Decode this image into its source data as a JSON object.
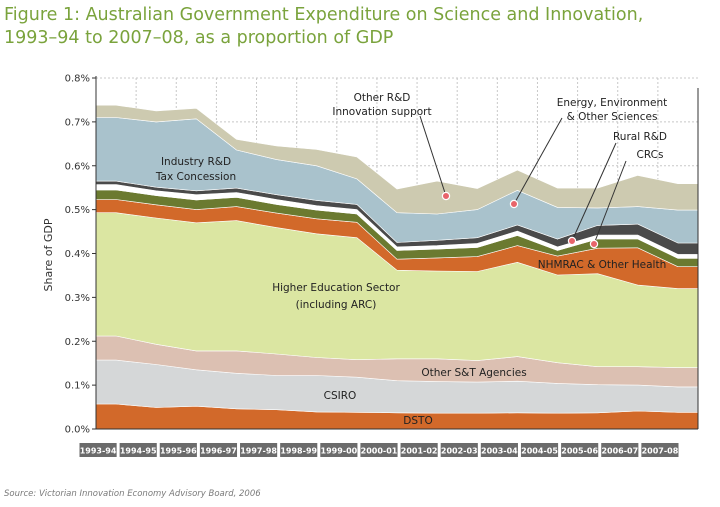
{
  "title_line1": "Figure 1: Australian Government Expenditure on Science and Innovation,",
  "title_line2": "1993–94 to 2007–08, as a proportion of GDP",
  "source": "Source: Victorian Innovation Economy Advisory Board, 2006",
  "chart_data": {
    "type": "area",
    "stacked": true,
    "ylabel": "Share of GDP",
    "ylim": [
      0,
      0.8
    ],
    "yticks": [
      "0.0%",
      "0.1%",
      "0.2%",
      "0.3%",
      "0.4%",
      "0.5%",
      "0.6%",
      "0.7%",
      "0.8%"
    ],
    "categories": [
      "1993-94",
      "1994-95",
      "1995-96",
      "1996-97",
      "1997-98",
      "1998-99",
      "1999-00",
      "2000-01",
      "2001-02",
      "2002-03",
      "2003-04",
      "2004-05",
      "2005-06",
      "2006-07",
      "2007-08"
    ],
    "series": [
      {
        "name": "DSTO",
        "color": "#d2692a",
        "values": [
          0.057,
          0.049,
          0.052,
          0.046,
          0.044,
          0.039,
          0.038,
          0.037,
          0.036,
          0.036,
          0.037,
          0.036,
          0.037,
          0.041,
          0.038
        ]
      },
      {
        "name": "CSIRO",
        "color": "#d5d7d8",
        "values": [
          0.1,
          0.098,
          0.083,
          0.081,
          0.078,
          0.083,
          0.08,
          0.073,
          0.072,
          0.071,
          0.072,
          0.068,
          0.064,
          0.059,
          0.058
        ]
      },
      {
        "name": "Other S&T Agencies",
        "color": "#dcc0b2",
        "values": [
          0.055,
          0.046,
          0.043,
          0.051,
          0.049,
          0.041,
          0.04,
          0.05,
          0.052,
          0.049,
          0.056,
          0.047,
          0.041,
          0.042,
          0.044
        ]
      },
      {
        "name": "Higher Education Sector (including ARC)",
        "color": "#dbe6a2",
        "values": [
          0.281,
          0.288,
          0.292,
          0.297,
          0.288,
          0.282,
          0.278,
          0.202,
          0.2,
          0.203,
          0.215,
          0.2,
          0.212,
          0.186,
          0.18
        ]
      },
      {
        "name": "NHMRAC & Other Health",
        "color": "#d2692a",
        "values": [
          0.03,
          0.03,
          0.03,
          0.032,
          0.033,
          0.034,
          0.035,
          0.025,
          0.03,
          0.034,
          0.038,
          0.043,
          0.058,
          0.085,
          0.05
        ]
      },
      {
        "name": "CRCs",
        "color": "#6b7a30",
        "values": [
          0.022,
          0.021,
          0.022,
          0.021,
          0.02,
          0.02,
          0.019,
          0.02,
          0.02,
          0.021,
          0.023,
          0.013,
          0.021,
          0.02,
          0.019
        ]
      },
      {
        "name": "Rural R&D",
        "color": "#ffffff",
        "values": [
          0.012,
          0.011,
          0.012,
          0.011,
          0.011,
          0.01,
          0.01,
          0.008,
          0.008,
          0.009,
          0.01,
          0.008,
          0.009,
          0.009,
          0.009
        ]
      },
      {
        "name": "Energy, Environment & Other Sciences",
        "color": "#4a4a4a",
        "values": [
          0.008,
          0.008,
          0.009,
          0.01,
          0.011,
          0.012,
          0.012,
          0.01,
          0.012,
          0.013,
          0.014,
          0.018,
          0.022,
          0.025,
          0.026
        ]
      },
      {
        "name": "Industry R&D Tax Concession",
        "color": "#a9c2cc",
        "values": [
          0.145,
          0.149,
          0.164,
          0.087,
          0.08,
          0.079,
          0.058,
          0.068,
          0.06,
          0.064,
          0.079,
          0.072,
          0.04,
          0.04,
          0.075
        ]
      },
      {
        "name": "Other R&D Innovation support",
        "color": "#cdcab0",
        "values": [
          0.028,
          0.025,
          0.024,
          0.024,
          0.031,
          0.037,
          0.05,
          0.054,
          0.075,
          0.048,
          0.046,
          0.044,
          0.045,
          0.071,
          0.06
        ]
      }
    ],
    "labels": {
      "industry": [
        "Industry R&D",
        "Tax Concession"
      ],
      "higher_ed": [
        "Higher Education Sector",
        "(including ARC)"
      ],
      "other_st": "Other S&T Agencies",
      "csiro": "CSIRO",
      "dsto": "DSTO",
      "nhmrac": "NHMRAC & Other Health",
      "other_rd": [
        "Other R&D",
        "Innovation support"
      ],
      "energy": [
        "Energy, Environment",
        "& Other Sciences"
      ],
      "rural": "Rural R&D",
      "crcs": "CRCs"
    },
    "grid": true
  }
}
